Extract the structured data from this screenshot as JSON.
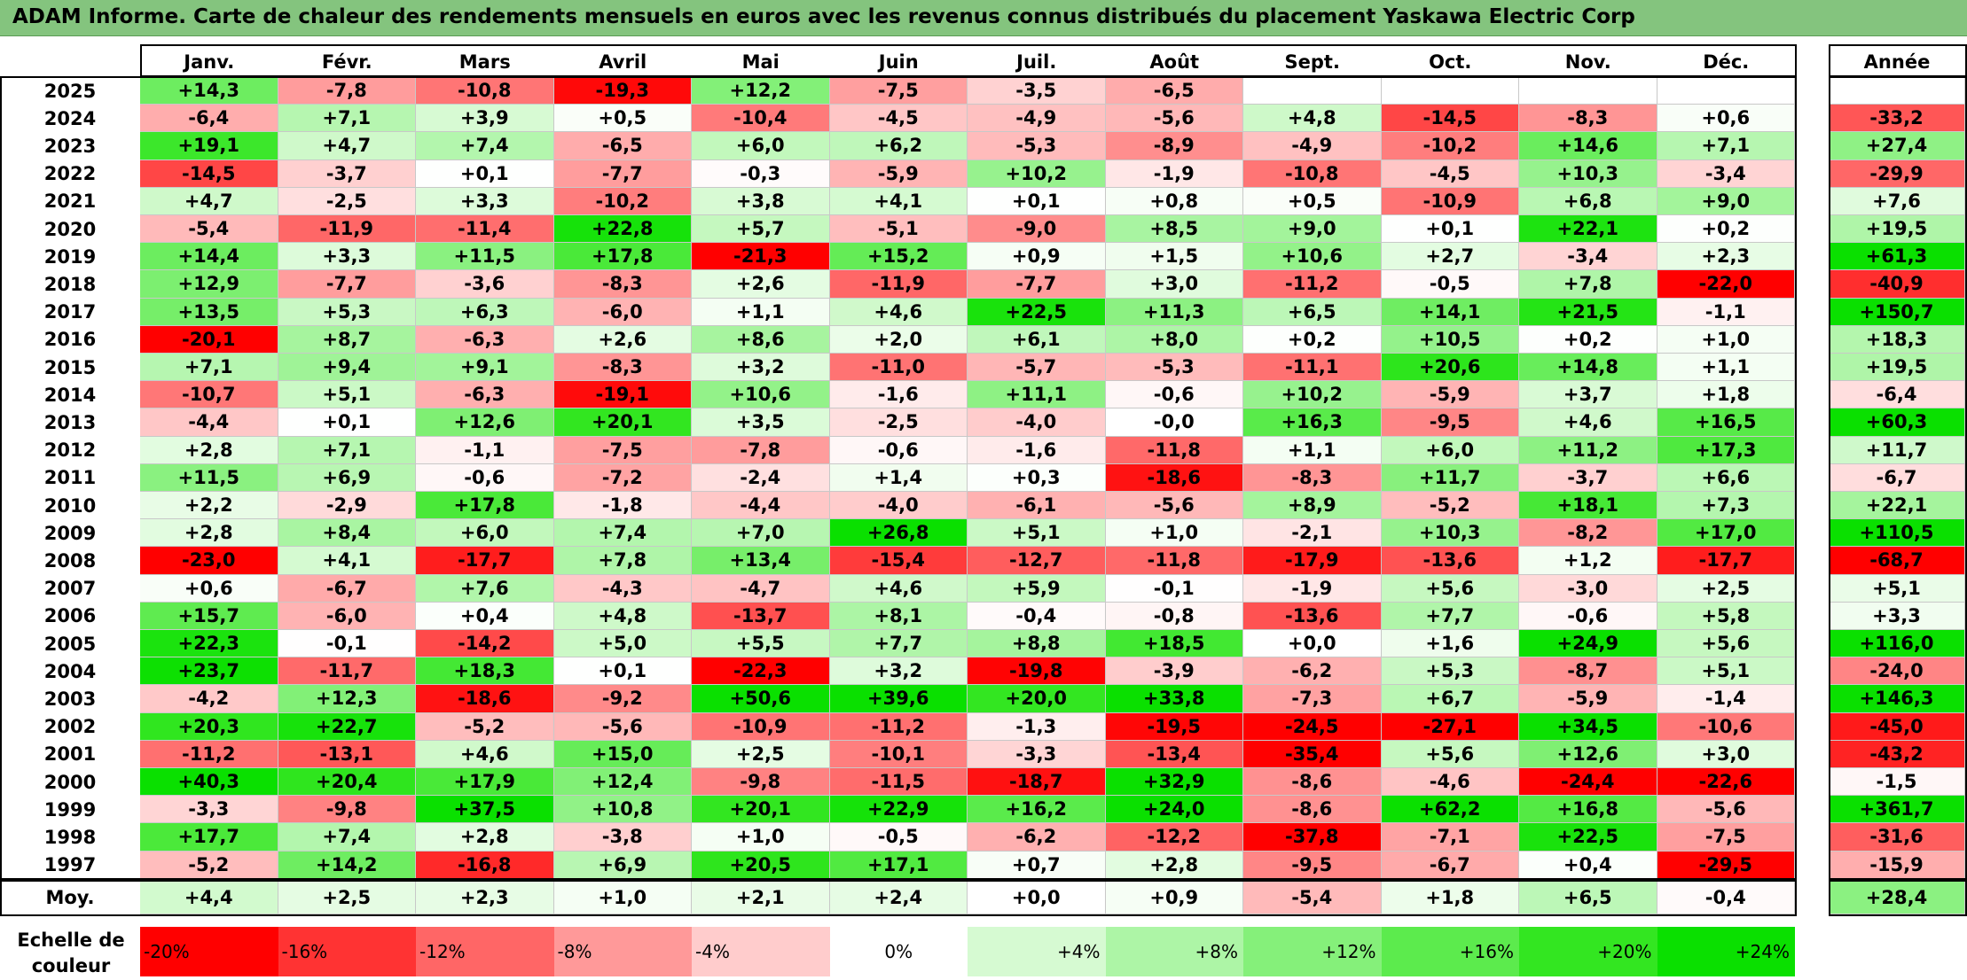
{
  "title": "ADAM Informe. Carte de chaleur des rendements mensuels en euros avec les revenus connus distribués du placement Yaskawa Electric Corp",
  "chart_data": {
    "type": "heatmap",
    "columns": [
      "Janv.",
      "Févr.",
      "Mars",
      "Avril",
      "Mai",
      "Juin",
      "Juil.",
      "Août",
      "Sept.",
      "Oct.",
      "Nov.",
      "Déc."
    ],
    "year_column": "Année",
    "rows": [
      {
        "label": "2025",
        "values": [
          "+14,3",
          "-7,8",
          "-10,8",
          "-19,3",
          "+12,2",
          "-7,5",
          "-3,5",
          "-6,5",
          "",
          "",
          "",
          ""
        ],
        "year": ""
      },
      {
        "label": "2024",
        "values": [
          "-6,4",
          "+7,1",
          "+3,9",
          "+0,5",
          "-10,4",
          "-4,5",
          "-4,9",
          "-5,6",
          "+4,8",
          "-14,5",
          "-8,3",
          "+0,6"
        ],
        "year": "-33,2"
      },
      {
        "label": "2023",
        "values": [
          "+19,1",
          "+4,7",
          "+7,4",
          "-6,5",
          "+6,0",
          "+6,2",
          "-5,3",
          "-8,9",
          "-4,9",
          "-10,2",
          "+14,6",
          "+7,1"
        ],
        "year": "+27,4"
      },
      {
        "label": "2022",
        "values": [
          "-14,5",
          "-3,7",
          "+0,1",
          "-7,7",
          "-0,3",
          "-5,9",
          "+10,2",
          "-1,9",
          "-10,8",
          "-4,5",
          "+10,3",
          "-3,4"
        ],
        "year": "-29,9"
      },
      {
        "label": "2021",
        "values": [
          "+4,7",
          "-2,5",
          "+3,3",
          "-10,2",
          "+3,8",
          "+4,1",
          "+0,1",
          "+0,8",
          "+0,5",
          "-10,9",
          "+6,8",
          "+9,0"
        ],
        "year": "+7,6"
      },
      {
        "label": "2020",
        "values": [
          "-5,4",
          "-11,9",
          "-11,4",
          "+22,8",
          "+5,7",
          "-5,1",
          "-9,0",
          "+8,5",
          "+9,0",
          "+0,1",
          "+22,1",
          "+0,2"
        ],
        "year": "+19,5"
      },
      {
        "label": "2019",
        "values": [
          "+14,4",
          "+3,3",
          "+11,5",
          "+17,8",
          "-21,3",
          "+15,2",
          "+0,9",
          "+1,5",
          "+10,6",
          "+2,7",
          "-3,4",
          "+2,3"
        ],
        "year": "+61,3"
      },
      {
        "label": "2018",
        "values": [
          "+12,9",
          "-7,7",
          "-3,6",
          "-8,3",
          "+2,6",
          "-11,9",
          "-7,7",
          "+3,0",
          "-11,2",
          "-0,5",
          "+7,8",
          "-22,0"
        ],
        "year": "-40,9"
      },
      {
        "label": "2017",
        "values": [
          "+13,5",
          "+5,3",
          "+6,3",
          "-6,0",
          "+1,1",
          "+4,6",
          "+22,5",
          "+11,3",
          "+6,5",
          "+14,1",
          "+21,5",
          "-1,1"
        ],
        "year": "+150,7"
      },
      {
        "label": "2016",
        "values": [
          "-20,1",
          "+8,7",
          "-6,3",
          "+2,6",
          "+8,6",
          "+2,0",
          "+6,1",
          "+8,0",
          "+0,2",
          "+10,5",
          "+0,2",
          "+1,0"
        ],
        "year": "+18,3"
      },
      {
        "label": "2015",
        "values": [
          "+7,1",
          "+9,4",
          "+9,1",
          "-8,3",
          "+3,2",
          "-11,0",
          "-5,7",
          "-5,3",
          "-11,1",
          "+20,6",
          "+14,8",
          "+1,1"
        ],
        "year": "+19,5"
      },
      {
        "label": "2014",
        "values": [
          "-10,7",
          "+5,1",
          "-6,3",
          "-19,1",
          "+10,6",
          "-1,6",
          "+11,1",
          "-0,6",
          "+10,2",
          "-5,9",
          "+3,7",
          "+1,8"
        ],
        "year": "-6,4"
      },
      {
        "label": "2013",
        "values": [
          "-4,4",
          "+0,1",
          "+12,6",
          "+20,1",
          "+3,5",
          "-2,5",
          "-4,0",
          "-0,0",
          "+16,3",
          "-9,5",
          "+4,6",
          "+16,5"
        ],
        "year": "+60,3"
      },
      {
        "label": "2012",
        "values": [
          "+2,8",
          "+7,1",
          "-1,1",
          "-7,5",
          "-7,8",
          "-0,6",
          "-1,6",
          "-11,8",
          "+1,1",
          "+6,0",
          "+11,2",
          "+17,3"
        ],
        "year": "+11,7"
      },
      {
        "label": "2011",
        "values": [
          "+11,5",
          "+6,9",
          "-0,6",
          "-7,2",
          "-2,4",
          "+1,4",
          "+0,3",
          "-18,6",
          "-8,3",
          "+11,7",
          "-3,7",
          "+6,6"
        ],
        "year": "-6,7"
      },
      {
        "label": "2010",
        "values": [
          "+2,2",
          "-2,9",
          "+17,8",
          "-1,8",
          "-4,4",
          "-4,0",
          "-6,1",
          "-5,6",
          "+8,9",
          "-5,2",
          "+18,1",
          "+7,3"
        ],
        "year": "+22,1"
      },
      {
        "label": "2009",
        "values": [
          "+2,8",
          "+8,4",
          "+6,0",
          "+7,4",
          "+7,0",
          "+26,8",
          "+5,1",
          "+1,0",
          "-2,1",
          "+10,3",
          "-8,2",
          "+17,0"
        ],
        "year": "+110,5"
      },
      {
        "label": "2008",
        "values": [
          "-23,0",
          "+4,1",
          "-17,7",
          "+7,8",
          "+13,4",
          "-15,4",
          "-12,7",
          "-11,8",
          "-17,9",
          "-13,6",
          "+1,2",
          "-17,7"
        ],
        "year": "-68,7"
      },
      {
        "label": "2007",
        "values": [
          "+0,6",
          "-6,7",
          "+7,6",
          "-4,3",
          "-4,7",
          "+4,6",
          "+5,9",
          "-0,1",
          "-1,9",
          "+5,6",
          "-3,0",
          "+2,5"
        ],
        "year": "+5,1"
      },
      {
        "label": "2006",
        "values": [
          "+15,7",
          "-6,0",
          "+0,4",
          "+4,8",
          "-13,7",
          "+8,1",
          "-0,4",
          "-0,8",
          "-13,6",
          "+7,7",
          "-0,6",
          "+5,8"
        ],
        "year": "+3,3"
      },
      {
        "label": "2005",
        "values": [
          "+22,3",
          "-0,1",
          "-14,2",
          "+5,0",
          "+5,5",
          "+7,7",
          "+8,8",
          "+18,5",
          "+0,0",
          "+1,6",
          "+24,9",
          "+5,6"
        ],
        "year": "+116,0"
      },
      {
        "label": "2004",
        "values": [
          "+23,7",
          "-11,7",
          "+18,3",
          "+0,1",
          "-22,3",
          "+3,2",
          "-19,8",
          "-3,9",
          "-6,2",
          "+5,3",
          "-8,7",
          "+5,1"
        ],
        "year": "-24,0"
      },
      {
        "label": "2003",
        "values": [
          "-4,2",
          "+12,3",
          "-18,6",
          "-9,2",
          "+50,6",
          "+39,6",
          "+20,0",
          "+33,8",
          "-7,3",
          "+6,7",
          "-5,9",
          "-1,4"
        ],
        "year": "+146,3"
      },
      {
        "label": "2002",
        "values": [
          "+20,3",
          "+22,7",
          "-5,2",
          "-5,6",
          "-10,9",
          "-11,2",
          "-1,3",
          "-19,5",
          "-24,5",
          "-27,1",
          "+34,5",
          "-10,6"
        ],
        "year": "-45,0"
      },
      {
        "label": "2001",
        "values": [
          "-11,2",
          "-13,1",
          "+4,6",
          "+15,0",
          "+2,5",
          "-10,1",
          "-3,3",
          "-13,4",
          "-35,4",
          "+5,6",
          "+12,6",
          "+3,0"
        ],
        "year": "-43,2"
      },
      {
        "label": "2000",
        "values": [
          "+40,3",
          "+20,4",
          "+17,9",
          "+12,4",
          "-9,8",
          "-11,5",
          "-18,7",
          "+32,9",
          "-8,6",
          "-4,6",
          "-24,4",
          "-22,6"
        ],
        "year": "-1,5"
      },
      {
        "label": "1999",
        "values": [
          "-3,3",
          "-9,8",
          "+37,5",
          "+10,8",
          "+20,1",
          "+22,9",
          "+16,2",
          "+24,0",
          "-8,6",
          "+62,2",
          "+16,8",
          "-5,6"
        ],
        "year": "+361,7"
      },
      {
        "label": "1998",
        "values": [
          "+17,7",
          "+7,4",
          "+2,8",
          "-3,8",
          "+1,0",
          "-0,5",
          "-6,2",
          "-12,2",
          "-37,8",
          "-7,1",
          "+22,5",
          "-7,5"
        ],
        "year": "-31,6"
      },
      {
        "label": "1997",
        "values": [
          "-5,2",
          "+14,2",
          "-16,8",
          "+6,9",
          "+20,5",
          "+17,1",
          "+0,7",
          "+2,8",
          "-9,5",
          "-6,7",
          "+0,4",
          "-29,5"
        ],
        "year": "-15,9"
      }
    ],
    "average": {
      "label": "Moy.",
      "values": [
        "+4,4",
        "+2,5",
        "+2,3",
        "+1,0",
        "+2,1",
        "+2,4",
        "+0,0",
        "+0,9",
        "-5,4",
        "+1,8",
        "+6,5",
        "-0,4"
      ],
      "year": "+28,4"
    },
    "scale": {
      "title": "Echelle de couleur",
      "stops": [
        {
          "label": "-20%",
          "value": -20,
          "color": "#ff0000"
        },
        {
          "label": "-16%",
          "value": -16,
          "color": "#ff3333"
        },
        {
          "label": "-12%",
          "value": -12,
          "color": "#ff6666"
        },
        {
          "label": "-8%",
          "value": -8,
          "color": "#ff9999"
        },
        {
          "label": "-4%",
          "value": -4,
          "color": "#ffcccc"
        },
        {
          "label": "0%",
          "value": 0,
          "color": "#ffffff"
        },
        {
          "label": "+4%",
          "value": 4,
          "color": "#d6fad2"
        },
        {
          "label": "+8%",
          "value": 8,
          "color": "#adf5a6"
        },
        {
          "label": "+12%",
          "value": 12,
          "color": "#85f07a"
        },
        {
          "label": "+16%",
          "value": 16,
          "color": "#5ceb4d"
        },
        {
          "label": "+20%",
          "value": 20,
          "color": "#33e621"
        },
        {
          "label": "+24%",
          "value": 24,
          "color": "#0ae000"
        }
      ]
    },
    "year_scale": {
      "min": -60,
      "max": 60
    }
  }
}
